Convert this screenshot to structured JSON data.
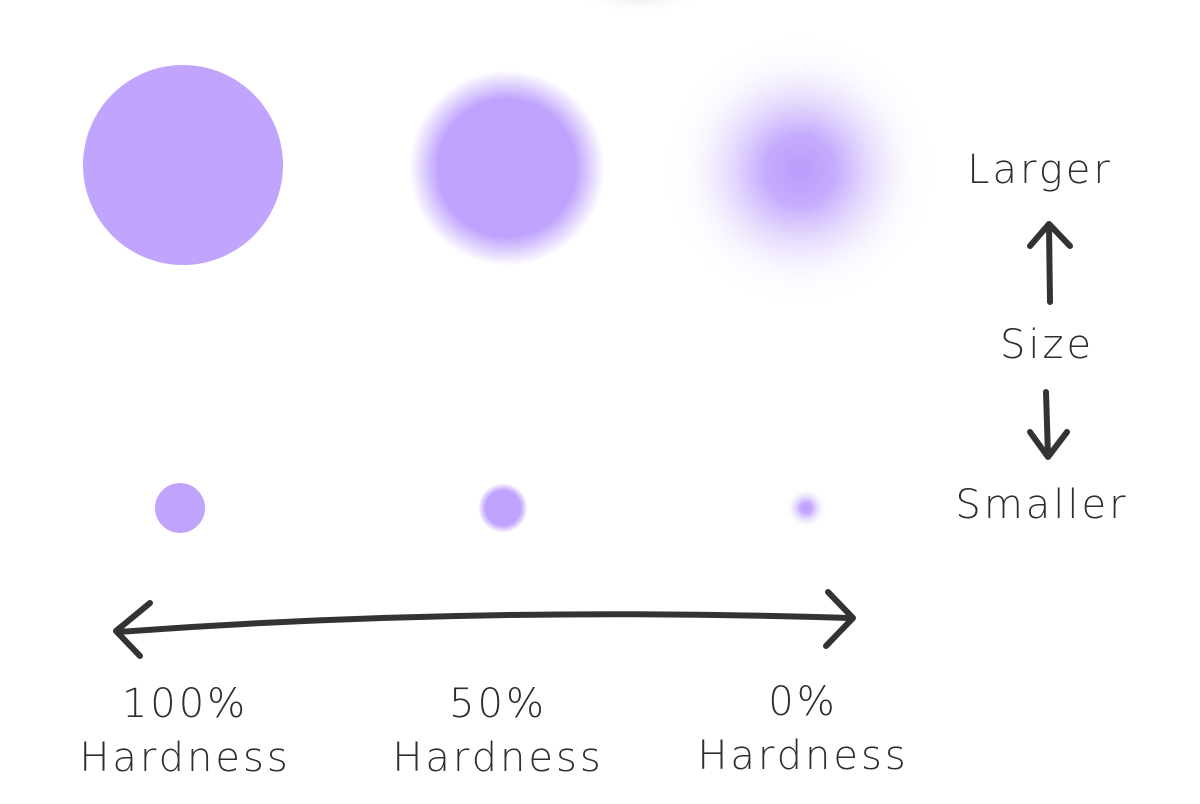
{
  "size_axis": {
    "top": "Larger",
    "label": "Size",
    "bottom": "Smaller"
  },
  "hardness_levels": [
    {
      "value": "100%",
      "label": "Hardness"
    },
    {
      "value": "50%",
      "label": "Hardness"
    },
    {
      "value": "0%",
      "label": "Hardness"
    }
  ]
}
